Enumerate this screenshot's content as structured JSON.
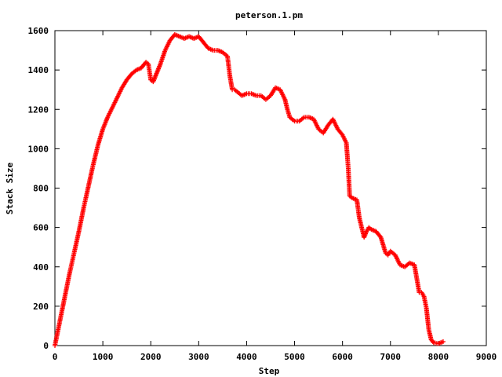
{
  "chart_data": {
    "type": "scatter",
    "title": "peterson.1.pm",
    "xlabel": "Step",
    "ylabel": "Stack Size",
    "xlim": [
      0,
      9000
    ],
    "ylim": [
      0,
      1600
    ],
    "xticks": [
      "0",
      "1000",
      "2000",
      "3000",
      "4000",
      "5000",
      "6000",
      "7000",
      "8000",
      "9000"
    ],
    "yticks": [
      "0",
      "200",
      "400",
      "600",
      "800",
      "1000",
      "1200",
      "1400",
      "1600"
    ],
    "grid": false,
    "legend": "none",
    "marker": "+",
    "color": "#ff0000",
    "series": [
      {
        "x": [
          0,
          100,
          200,
          300,
          400,
          500,
          600,
          700,
          800,
          900,
          1000,
          1100,
          1200,
          1300,
          1400,
          1500,
          1600,
          1700,
          1800,
          1900,
          1950,
          2000,
          2050,
          2100,
          2150,
          2200,
          2300,
          2400,
          2500,
          2600,
          2700,
          2800,
          2900,
          3000,
          3100,
          3200,
          3300,
          3400,
          3500,
          3600,
          3650,
          3700,
          3750,
          3800,
          3900,
          4000,
          4100,
          4200,
          4300,
          4400,
          4500,
          4600,
          4700,
          4800,
          4850,
          4900,
          5000,
          5100,
          5200,
          5300,
          5400,
          5500,
          5600,
          5700,
          5800,
          5900,
          6000,
          6080,
          6120,
          6150,
          6200,
          6300,
          6350,
          6400,
          6450,
          6500,
          6550,
          6600,
          6700,
          6800,
          6900,
          6950,
          7000,
          7100,
          7200,
          7300,
          7400,
          7500,
          7600,
          7650,
          7700,
          7750,
          7800,
          7850,
          7900,
          8000,
          8100
        ],
        "y": [
          0,
          120,
          240,
          360,
          470,
          580,
          700,
          810,
          920,
          1020,
          1100,
          1160,
          1210,
          1260,
          1310,
          1350,
          1380,
          1400,
          1410,
          1440,
          1430,
          1350,
          1340,
          1370,
          1400,
          1430,
          1500,
          1550,
          1580,
          1570,
          1560,
          1570,
          1560,
          1570,
          1540,
          1510,
          1500,
          1500,
          1490,
          1470,
          1370,
          1300,
          1300,
          1290,
          1270,
          1280,
          1280,
          1270,
          1270,
          1250,
          1270,
          1310,
          1300,
          1250,
          1200,
          1160,
          1140,
          1140,
          1160,
          1160,
          1150,
          1100,
          1080,
          1120,
          1150,
          1100,
          1070,
          1030,
          900,
          760,
          750,
          740,
          650,
          600,
          550,
          580,
          600,
          590,
          580,
          550,
          470,
          460,
          480,
          460,
          410,
          400,
          420,
          410,
          270,
          270,
          250,
          190,
          80,
          30,
          15,
          10,
          20
        ]
      }
    ]
  }
}
